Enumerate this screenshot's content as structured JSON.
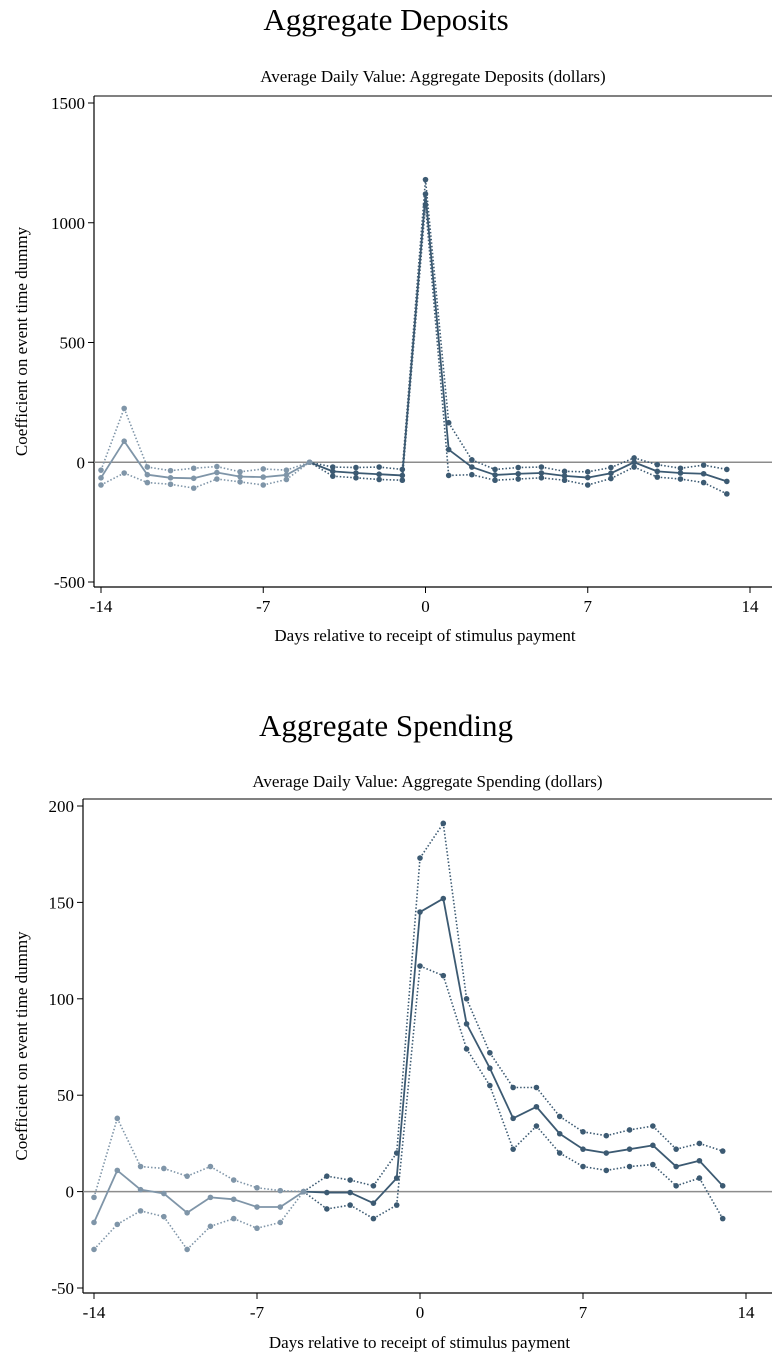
{
  "colors": {
    "pre": "#7f95a8",
    "post": "#3c5a72",
    "zero_line": "#8c8c8c",
    "axis": "#000000"
  },
  "chart_data": [
    {
      "type": "line",
      "title": "Aggregate Deposits",
      "subtitle": "Average Daily Value: Aggregate Deposits (dollars)",
      "xlabel": "Days relative to receipt of stimulus payment",
      "ylabel": "Coefficient on event time dummy",
      "xlim": [
        -14,
        14
      ],
      "ylim": [
        -500,
        1500
      ],
      "x_ticks": [
        -14,
        -7,
        0,
        7,
        14
      ],
      "y_ticks": [
        -500,
        0,
        500,
        1000,
        1500
      ],
      "x_tick_labels": [
        "-14",
        "-7",
        "0",
        "7",
        "14"
      ],
      "y_tick_labels": [
        "-500",
        "0",
        "500",
        "1000",
        "1500"
      ],
      "grid": false,
      "reference_line_y": 0,
      "x": [
        -14,
        -13,
        -12,
        -11,
        -10,
        -9,
        -8,
        -7,
        -6,
        -5,
        -4,
        -3,
        -2,
        -1,
        0,
        1,
        2,
        3,
        4,
        5,
        6,
        7,
        8,
        9,
        10,
        11,
        12,
        13
      ],
      "series": [
        {
          "role": "estimate",
          "values": [
            -65,
            88,
            -52,
            -65,
            -67,
            -43,
            -60,
            -62,
            -53,
            0,
            -38,
            -45,
            -50,
            -55,
            1120,
            53,
            -20,
            -53,
            -48,
            -45,
            -57,
            -64,
            -46,
            0,
            -38,
            -45,
            -48,
            -80
          ]
        },
        {
          "role": "upper_ci",
          "values": [
            -33,
            225,
            -20,
            -35,
            -25,
            -18,
            -40,
            -28,
            -33,
            0,
            -20,
            -22,
            -20,
            -30,
            1180,
            165,
            10,
            -30,
            -22,
            -20,
            -38,
            -40,
            -22,
            18,
            -10,
            -25,
            -12,
            -30
          ]
        },
        {
          "role": "lower_ci",
          "values": [
            -95,
            -45,
            -85,
            -92,
            -108,
            -70,
            -82,
            -95,
            -72,
            0,
            -58,
            -65,
            -72,
            -75,
            1075,
            -55,
            -52,
            -75,
            -70,
            -65,
            -75,
            -95,
            -68,
            -20,
            -62,
            -70,
            -85,
            -132
          ]
        }
      ]
    },
    {
      "type": "line",
      "title": "Aggregate Spending",
      "subtitle": "Average Daily Value: Aggregate Spending (dollars)",
      "xlabel": "Days relative to receipt of stimulus payment",
      "ylabel": "Coefficient on event time dummy",
      "xlim": [
        -14,
        14
      ],
      "ylim": [
        -50,
        200
      ],
      "x_ticks": [
        -14,
        -7,
        0,
        7,
        14
      ],
      "y_ticks": [
        -50,
        0,
        50,
        100,
        150,
        200
      ],
      "x_tick_labels": [
        "-14",
        "-7",
        "0",
        "7",
        "14"
      ],
      "y_tick_labels": [
        "-50",
        "0",
        "50",
        "100",
        "150",
        "200"
      ],
      "grid": false,
      "reference_line_y": 0,
      "x": [
        -14,
        -13,
        -12,
        -11,
        -10,
        -9,
        -8,
        -7,
        -6,
        -5,
        -4,
        -3,
        -2,
        -1,
        0,
        1,
        2,
        3,
        4,
        5,
        6,
        7,
        8,
        9,
        10,
        11,
        12,
        13
      ],
      "series": [
        {
          "role": "estimate",
          "values": [
            -16,
            11,
            1,
            -1,
            -11,
            -3,
            -4,
            -8,
            -8,
            0,
            -0.5,
            -0.5,
            -6,
            7,
            145,
            152,
            87,
            64,
            38,
            44,
            30,
            22,
            20,
            22,
            24,
            13,
            16,
            3
          ]
        },
        {
          "role": "upper_ci",
          "values": [
            -3,
            38,
            13,
            12,
            8,
            13,
            6,
            2,
            0.5,
            0,
            8,
            6,
            3,
            20,
            173,
            191,
            100,
            72,
            54,
            54,
            39,
            31,
            29,
            32,
            34,
            22,
            25,
            21
          ]
        },
        {
          "role": "lower_ci",
          "values": [
            -30,
            -17,
            -10,
            -13,
            -30,
            -18,
            -14,
            -19,
            -16,
            0,
            -9,
            -7,
            -14,
            -7,
            117,
            112,
            74,
            55,
            22,
            34,
            20,
            13,
            11,
            13,
            14,
            3,
            7,
            -14
          ]
        }
      ]
    }
  ]
}
